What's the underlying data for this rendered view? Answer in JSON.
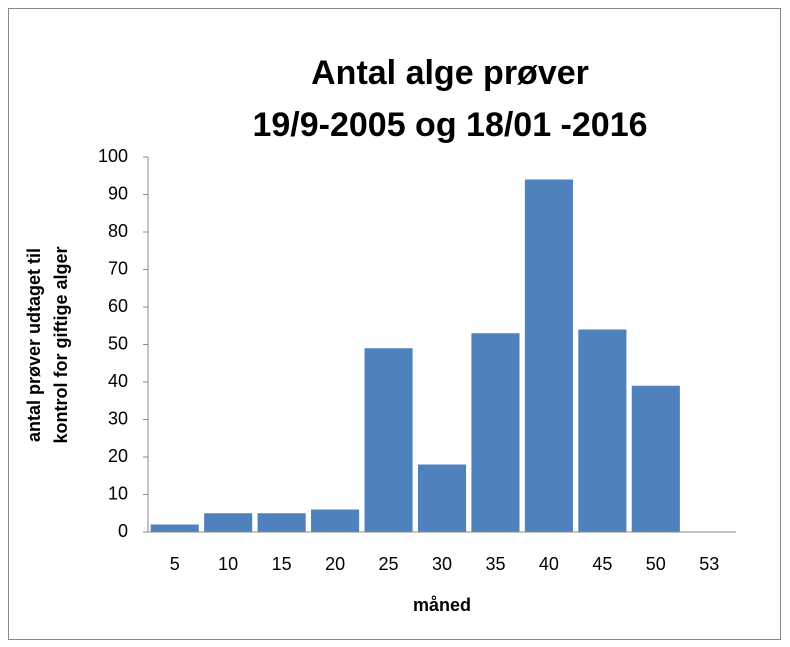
{
  "chart_data": {
    "type": "bar",
    "title": [
      "Antal alge prøver",
      "19/9-2005 og 18/01 -2016"
    ],
    "y_label": [
      "antal prøver udtaget til",
      "kontrol for giftige alger"
    ],
    "x_label": "måned",
    "categories": [
      "5",
      "10",
      "15",
      "20",
      "25",
      "30",
      "35",
      "40",
      "45",
      "50",
      "53"
    ],
    "values": [
      2,
      5,
      5,
      6,
      49,
      18,
      53,
      94,
      54,
      39,
      0
    ],
    "color": "#4f81bd",
    "ylim": [
      0,
      100
    ],
    "yticks": [
      0,
      10,
      20,
      30,
      40,
      50,
      60,
      70,
      80,
      90,
      100
    ],
    "grid": false
  }
}
